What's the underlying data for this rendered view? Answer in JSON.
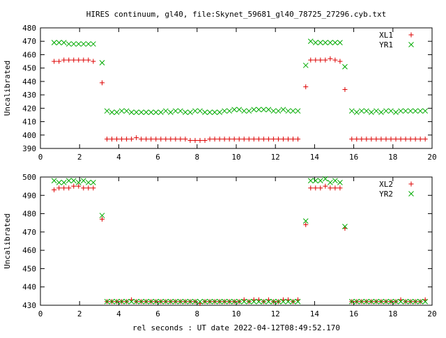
{
  "title": "HIRES continuum, gl40, file:Skynet_59681_gl40_78725_27296.cyb.txt",
  "xlabel": "rel seconds : UT date 2022-04-12T08:49:52.170",
  "colors": {
    "red": "#dd0000",
    "green": "#00aa00",
    "axis": "#000000"
  },
  "chart_data": [
    {
      "type": "scatter",
      "ylabel": "Uncalibrated",
      "xlim": [
        0,
        20
      ],
      "ylim": [
        390,
        480
      ],
      "xticks": [
        "0",
        "2",
        "4",
        "6",
        "8",
        "10",
        "12",
        "14",
        "16",
        "18",
        "20"
      ],
      "yticks": [
        "390",
        "400",
        "410",
        "420",
        "430",
        "440",
        "450",
        "460",
        "470",
        "480"
      ],
      "grid": false,
      "legend_position": "top-right",
      "series": [
        {
          "name": "XL1",
          "marker": "plus",
          "color": "#dd0000",
          "x": [
            0.7,
            0.95,
            1.2,
            1.45,
            1.7,
            1.95,
            2.2,
            2.45,
            2.7,
            3.15,
            3.4,
            3.65,
            3.9,
            4.15,
            4.4,
            4.65,
            4.9,
            5.15,
            5.4,
            5.65,
            5.9,
            6.15,
            6.4,
            6.65,
            6.9,
            7.15,
            7.4,
            7.65,
            7.9,
            8.15,
            8.4,
            8.65,
            8.9,
            9.15,
            9.4,
            9.65,
            9.9,
            10.15,
            10.4,
            10.65,
            10.9,
            11.15,
            11.4,
            11.65,
            11.9,
            12.15,
            12.4,
            12.65,
            12.9,
            13.15,
            13.55,
            13.8,
            14.05,
            14.3,
            14.55,
            14.8,
            15.05,
            15.3,
            15.55,
            15.9,
            16.15,
            16.4,
            16.65,
            16.9,
            17.15,
            17.4,
            17.65,
            17.9,
            18.15,
            18.4,
            18.65,
            18.9,
            19.15,
            19.4,
            19.65
          ],
          "y": [
            455,
            455,
            456,
            456,
            456,
            456,
            456,
            456,
            455,
            439,
            397,
            397,
            397,
            397,
            397,
            397,
            398,
            397,
            397,
            397,
            397,
            397,
            397,
            397,
            397,
            397,
            397,
            396,
            396,
            396,
            396,
            397,
            397,
            397,
            397,
            397,
            397,
            397,
            397,
            397,
            397,
            397,
            397,
            397,
            397,
            397,
            397,
            397,
            397,
            397,
            436,
            456,
            456,
            456,
            456,
            457,
            456,
            455,
            434,
            397,
            397,
            397,
            397,
            397,
            397,
            397,
            397,
            397,
            397,
            397,
            397,
            397,
            397,
            397,
            397
          ]
        },
        {
          "name": "YR1",
          "marker": "cross",
          "color": "#00aa00",
          "x": [
            0.7,
            0.95,
            1.2,
            1.45,
            1.7,
            1.95,
            2.2,
            2.45,
            2.7,
            3.15,
            3.4,
            3.65,
            3.9,
            4.15,
            4.4,
            4.65,
            4.9,
            5.15,
            5.4,
            5.65,
            5.9,
            6.15,
            6.4,
            6.65,
            6.9,
            7.15,
            7.4,
            7.65,
            7.9,
            8.15,
            8.4,
            8.65,
            8.9,
            9.15,
            9.4,
            9.65,
            9.9,
            10.15,
            10.4,
            10.65,
            10.9,
            11.15,
            11.4,
            11.65,
            11.9,
            12.15,
            12.4,
            12.65,
            12.9,
            13.15,
            13.55,
            13.8,
            14.05,
            14.3,
            14.55,
            14.8,
            15.05,
            15.3,
            15.55,
            15.9,
            16.15,
            16.4,
            16.65,
            16.9,
            17.15,
            17.4,
            17.65,
            17.9,
            18.15,
            18.4,
            18.65,
            18.9,
            19.15,
            19.4,
            19.65
          ],
          "y": [
            469,
            469,
            469,
            468,
            468,
            468,
            468,
            468,
            468,
            454,
            418,
            417,
            417,
            418,
            418,
            417,
            417,
            417,
            417,
            417,
            417,
            417,
            418,
            417,
            418,
            418,
            417,
            417,
            418,
            418,
            417,
            417,
            417,
            417,
            418,
            418,
            419,
            419,
            418,
            418,
            419,
            419,
            419,
            419,
            418,
            418,
            419,
            418,
            418,
            418,
            452,
            470,
            469,
            469,
            469,
            469,
            469,
            469,
            451,
            418,
            417,
            418,
            418,
            417,
            418,
            417,
            418,
            418,
            417,
            418,
            418,
            418,
            418,
            418,
            418
          ]
        }
      ]
    },
    {
      "type": "scatter",
      "ylabel": "Uncalibrated",
      "xlim": [
        0,
        20
      ],
      "ylim": [
        430,
        500
      ],
      "xticks": [
        "0",
        "2",
        "4",
        "6",
        "8",
        "10",
        "12",
        "14",
        "16",
        "18",
        "20"
      ],
      "yticks": [
        "430",
        "440",
        "450",
        "460",
        "470",
        "480",
        "490",
        "500"
      ],
      "grid": false,
      "legend_position": "top-right",
      "series": [
        {
          "name": "XL2",
          "marker": "plus",
          "color": "#dd0000",
          "x": [
            0.7,
            0.95,
            1.2,
            1.45,
            1.7,
            1.95,
            2.2,
            2.45,
            2.7,
            3.15,
            3.4,
            3.65,
            3.9,
            4.15,
            4.4,
            4.65,
            4.9,
            5.15,
            5.4,
            5.65,
            5.9,
            6.15,
            6.4,
            6.65,
            6.9,
            7.15,
            7.4,
            7.65,
            7.9,
            8.15,
            8.4,
            8.65,
            8.9,
            9.15,
            9.4,
            9.65,
            9.9,
            10.15,
            10.4,
            10.65,
            10.9,
            11.15,
            11.4,
            11.65,
            11.9,
            12.15,
            12.4,
            12.65,
            12.9,
            13.15,
            13.55,
            13.8,
            14.05,
            14.3,
            14.55,
            14.8,
            15.05,
            15.3,
            15.55,
            15.9,
            16.15,
            16.4,
            16.65,
            16.9,
            17.15,
            17.4,
            17.65,
            17.9,
            18.15,
            18.4,
            18.65,
            18.9,
            19.15,
            19.4,
            19.65
          ],
          "y": [
            493,
            494,
            494,
            494,
            495,
            495,
            494,
            494,
            494,
            477,
            432,
            432,
            432,
            432,
            432,
            433,
            432,
            432,
            432,
            432,
            432,
            432,
            432,
            432,
            432,
            432,
            432,
            432,
            432,
            431,
            432,
            432,
            432,
            432,
            432,
            432,
            432,
            432,
            433,
            432,
            433,
            433,
            432,
            433,
            432,
            432,
            433,
            433,
            432,
            433,
            474,
            494,
            494,
            494,
            495,
            494,
            494,
            494,
            472,
            432,
            432,
            432,
            432,
            432,
            432,
            432,
            432,
            432,
            432,
            433,
            432,
            432,
            432,
            432,
            433
          ]
        },
        {
          "name": "YR2",
          "marker": "cross",
          "color": "#00aa00",
          "x": [
            0.7,
            0.95,
            1.2,
            1.45,
            1.7,
            1.95,
            2.2,
            2.45,
            2.7,
            3.15,
            3.4,
            3.65,
            3.9,
            4.15,
            4.4,
            4.65,
            4.9,
            5.15,
            5.4,
            5.65,
            5.9,
            6.15,
            6.4,
            6.65,
            6.9,
            7.15,
            7.4,
            7.65,
            7.9,
            8.15,
            8.4,
            8.65,
            8.9,
            9.15,
            9.4,
            9.65,
            9.9,
            10.15,
            10.4,
            10.65,
            10.9,
            11.15,
            11.4,
            11.65,
            11.9,
            12.15,
            12.4,
            12.65,
            12.9,
            13.15,
            13.55,
            13.8,
            14.05,
            14.3,
            14.55,
            14.8,
            15.05,
            15.3,
            15.55,
            15.9,
            16.15,
            16.4,
            16.65,
            16.9,
            17.15,
            17.4,
            17.65,
            17.9,
            18.15,
            18.4,
            18.65,
            18.9,
            19.15,
            19.4,
            19.65
          ],
          "y": [
            498,
            497,
            497,
            498,
            498,
            497,
            498,
            497,
            497,
            479,
            432,
            432,
            432,
            432,
            432,
            432,
            432,
            432,
            432,
            432,
            432,
            432,
            432,
            432,
            432,
            432,
            432,
            432,
            432,
            432,
            432,
            432,
            432,
            432,
            432,
            432,
            432,
            432,
            432,
            432,
            432,
            432,
            432,
            432,
            432,
            432,
            432,
            432,
            432,
            432,
            476,
            498,
            498,
            498,
            499,
            497,
            498,
            497,
            473,
            432,
            432,
            432,
            432,
            432,
            432,
            432,
            432,
            432,
            432,
            432,
            432,
            432,
            432,
            432,
            432
          ]
        }
      ]
    }
  ]
}
